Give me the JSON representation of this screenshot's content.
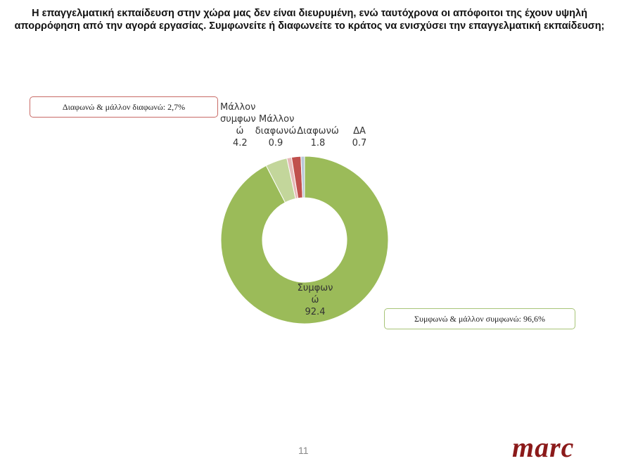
{
  "title": "Η επαγγελματική εκπαίδευση στην χώρα μας δεν είναι διευρυμένη, ενώ ταυτόχρονα οι απόφοιτοι της έχουν υψηλή απορρόφηση από την αγορά εργασίας. Συμφωνείτε ή διαφωνείτε το κράτος να ενισχύσει την επαγγελματική εκπαίδευση;",
  "callouts": {
    "disagree_total": "Διαφωνώ & μάλλον διαφωνώ: 2,7%",
    "agree_total": "Συμφωνώ & μάλλον συμφωνώ: 96,6%"
  },
  "labels": {
    "rather_agree_l1": "Μάλλον",
    "rather_agree_l2": "συμφων",
    "rather_agree_l3": "ώ",
    "rather_agree_val": "4.2",
    "rather_disagree_l1": "Μάλλον",
    "rather_disagree_l2": "διαφωνώ",
    "rather_disagree_val": "0.9",
    "disagree_l1": "Διαφωνώ",
    "disagree_val": "1.8",
    "na_l1": "ΔΑ",
    "na_val": "0.7",
    "agree_l1": "Συμφων",
    "agree_l2": "ώ",
    "agree_val": "92.4"
  },
  "footer": {
    "page_number": "11",
    "logo": "marc"
  },
  "colors": {
    "agree": "#9BBB59",
    "rather_agree": "#C3D69B",
    "rather_disagree": "#E6B9B8",
    "disagree": "#C0504D",
    "na": "#B9C7D8",
    "logo": "#8B1A1A"
  },
  "chart_data": {
    "type": "pie",
    "subtype": "donut",
    "title": "Η επαγγελματική εκπαίδευση στην χώρα μας δεν είναι διευρυμένη, ενώ ταυτόχρονα οι απόφοιτοι της έχουν υψηλή απορρόφηση από την αγορά εργασίας. Συμφωνείτε ή διαφωνείτε το κράτος να ενισχύσει την επαγγελματική εκπαίδευση;",
    "categories": [
      "Συμφωνώ",
      "Μάλλον συμφωνώ",
      "Μάλλον διαφωνώ",
      "Διαφωνώ",
      "ΔΑ"
    ],
    "values": [
      92.4,
      4.2,
      0.9,
      1.8,
      0.7
    ],
    "colors": [
      "#9BBB59",
      "#C3D69B",
      "#E6B9B8",
      "#C0504D",
      "#B9C7D8"
    ],
    "annotations": [
      "Διαφωνώ & μάλλον διαφωνώ: 2,7%",
      "Συμφωνώ & μάλλον συμφωνώ: 96,6%"
    ],
    "legend": "none"
  }
}
